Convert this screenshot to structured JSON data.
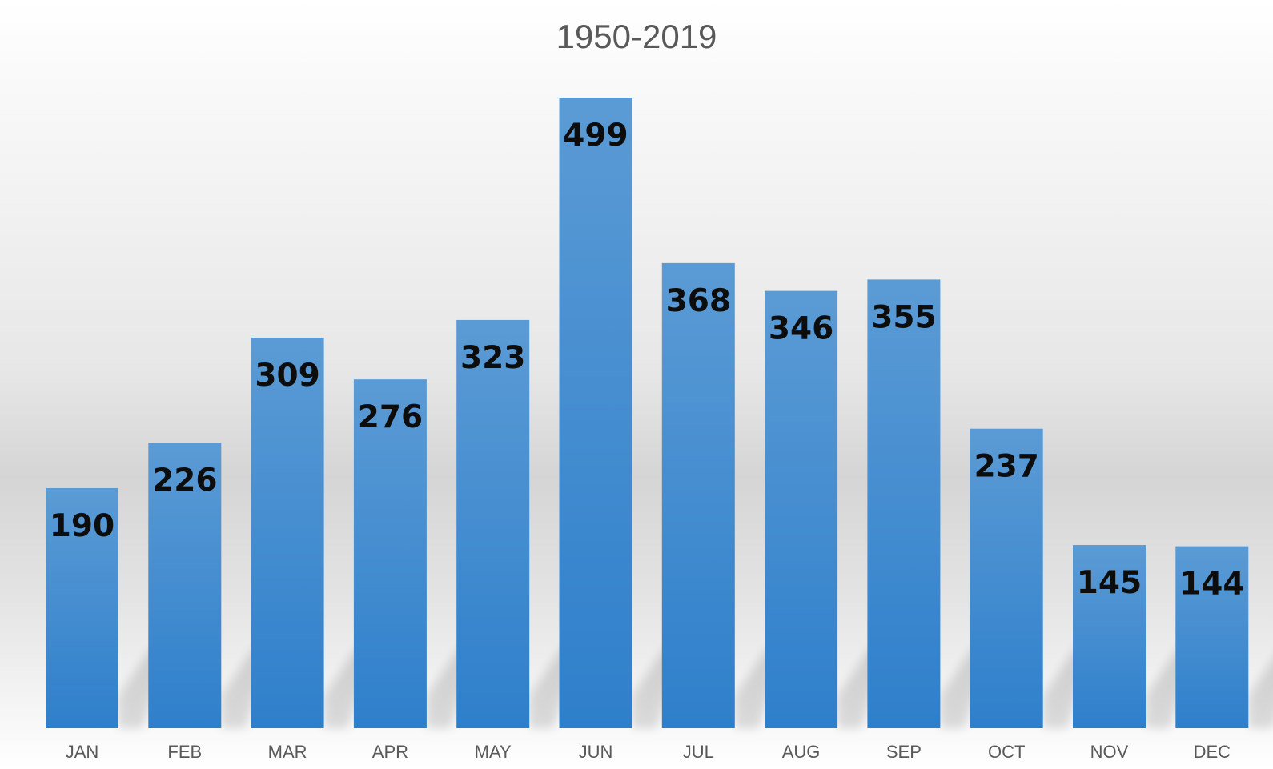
{
  "chart_data": {
    "type": "bar",
    "title": "",
    "subtitle": "1950-2019",
    "categories": [
      "JAN",
      "FEB",
      "MAR",
      "APR",
      "MAY",
      "JUN",
      "JUL",
      "AUG",
      "SEP",
      "OCT",
      "NOV",
      "DEC"
    ],
    "values": [
      190,
      226,
      309,
      276,
      323,
      499,
      368,
      346,
      355,
      237,
      145,
      144
    ],
    "data_labels": [
      "190",
      "226",
      "309",
      "276",
      "323",
      "499",
      "368",
      "346",
      "355",
      "237",
      "145",
      "144"
    ],
    "xlabel": "",
    "ylabel": "",
    "ylim": [
      0,
      499
    ],
    "grid": false,
    "legend": "none",
    "bar_color_top": "#5b9bd5",
    "bar_color_bottom": "#2e7fcb",
    "label_color": "#0d0d0d",
    "tick_color": "#595959"
  }
}
